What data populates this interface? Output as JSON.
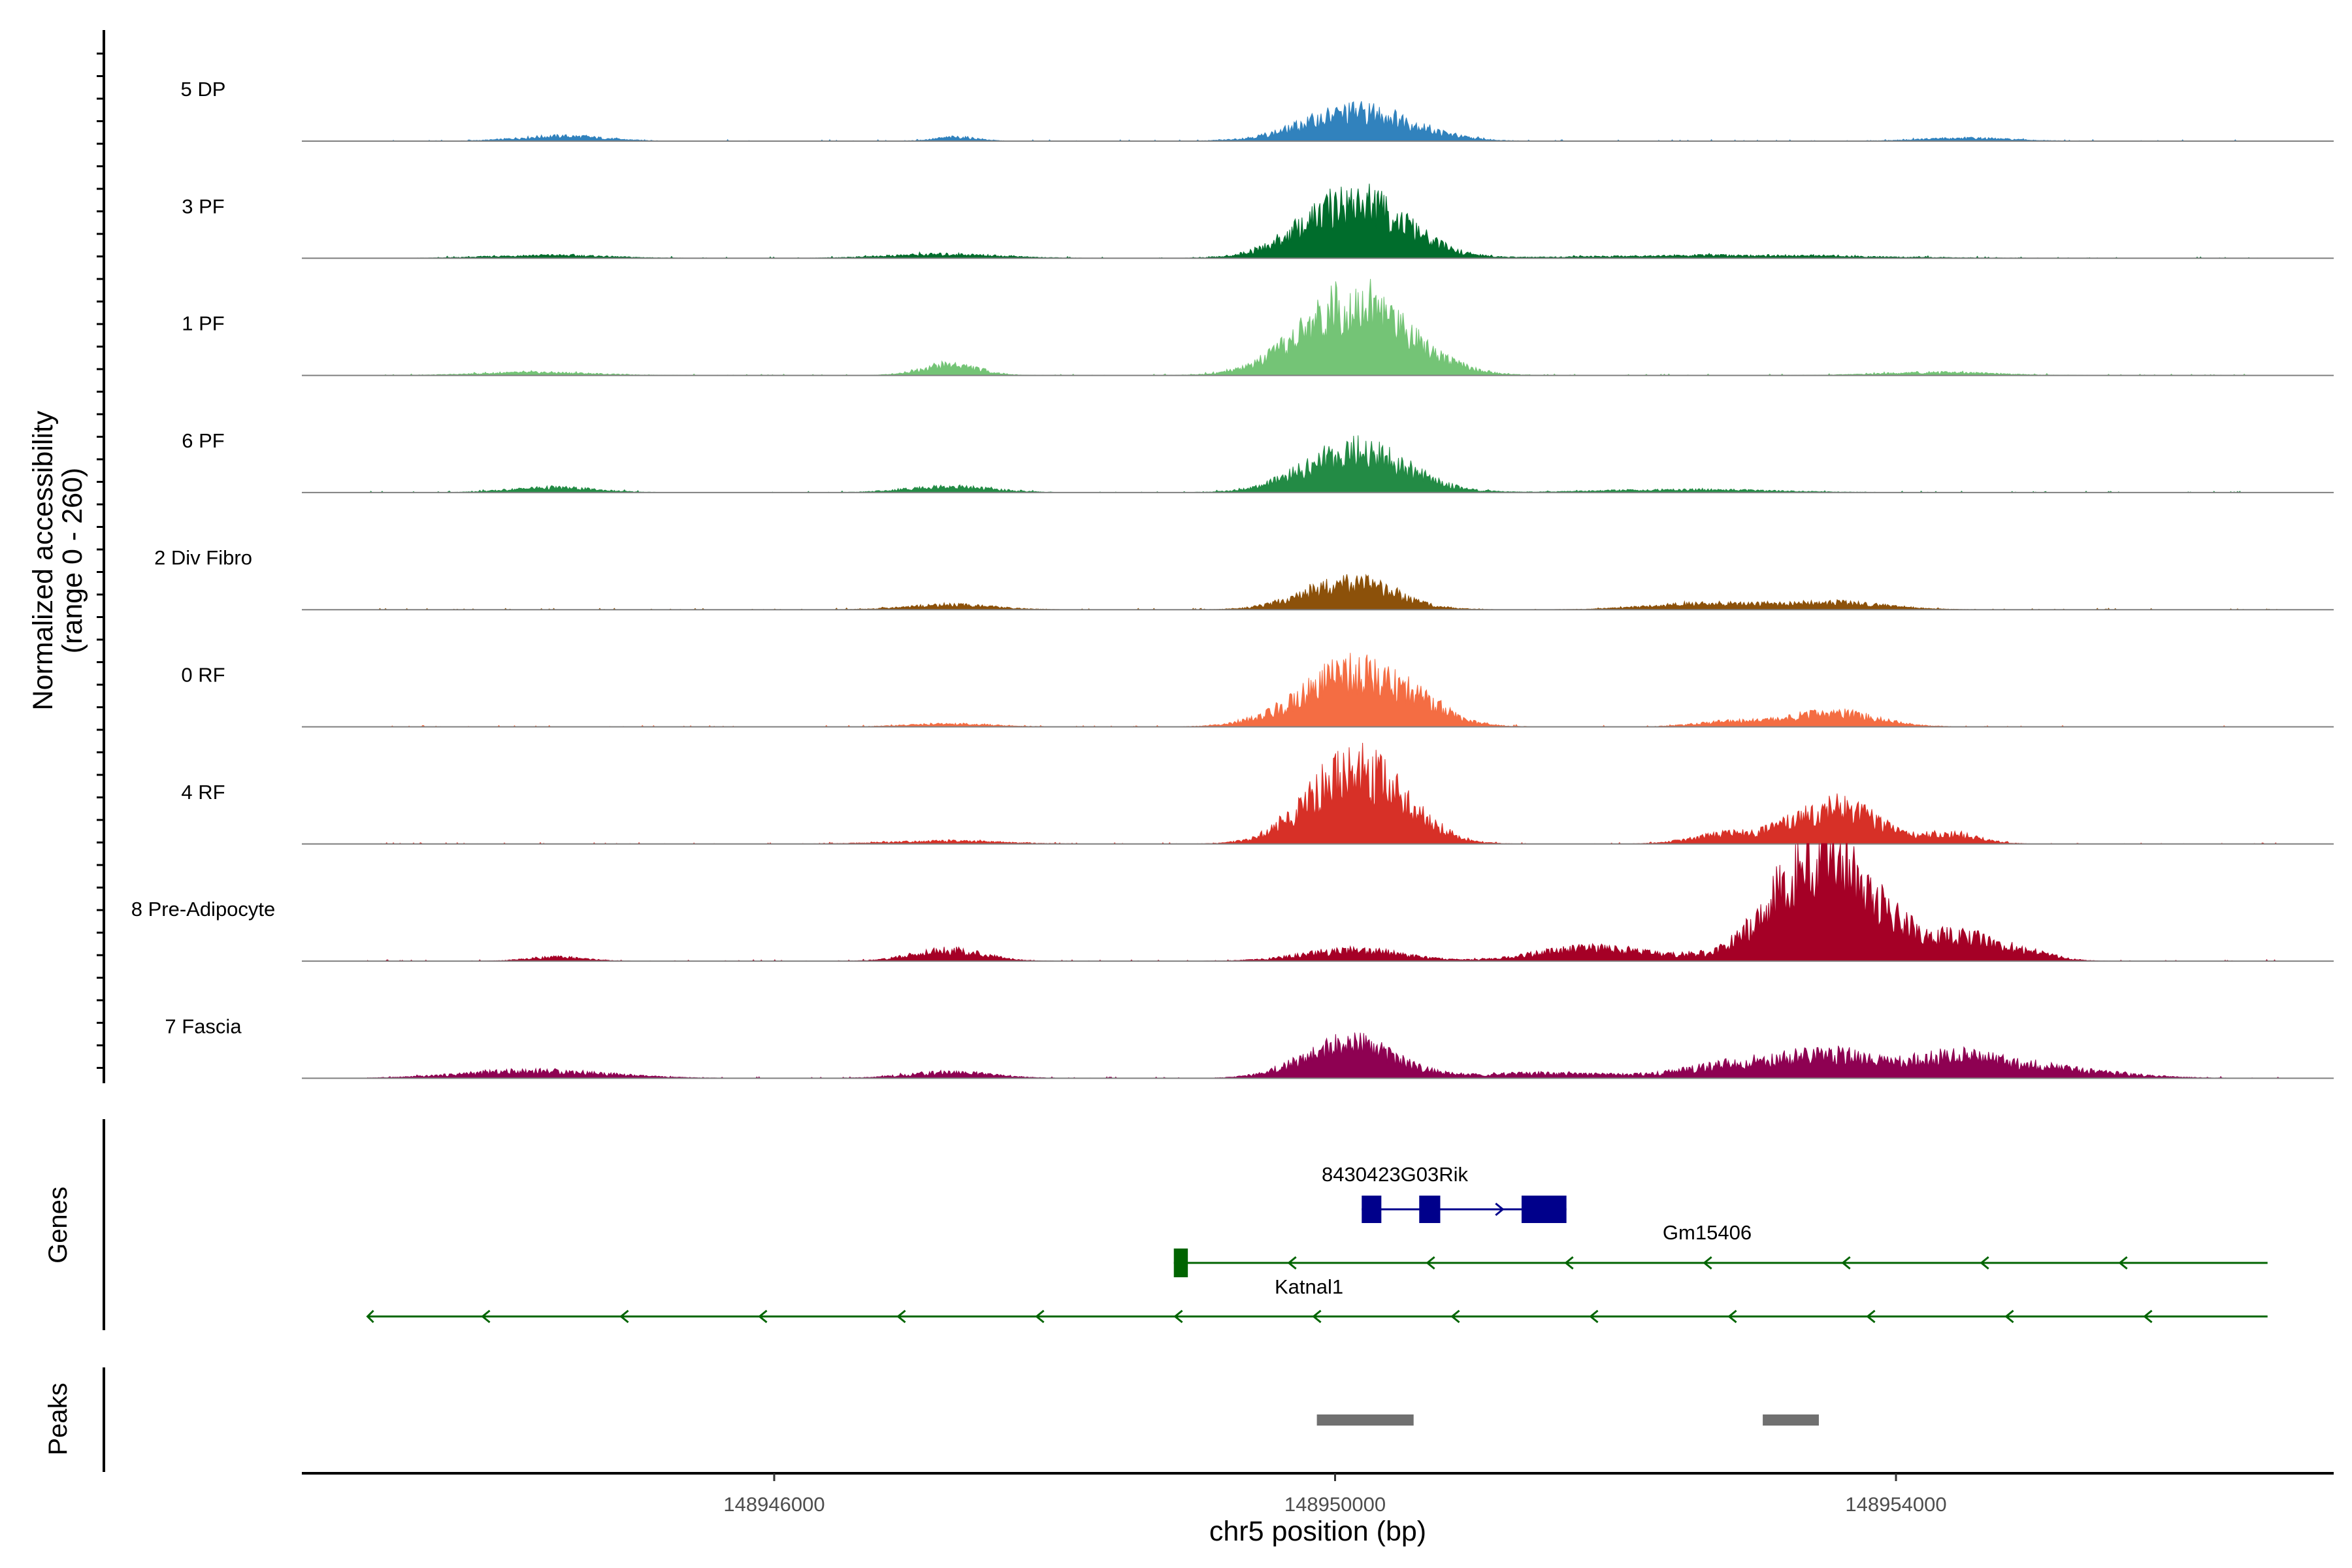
{
  "chart_data": {
    "type": "area",
    "title": "",
    "genomic_range": [
      148943100,
      148956750
    ],
    "y_axis_label_line1": "Normalized accessibility",
    "y_axis_label_line2": "(range 0 - 260)",
    "ylim": [
      0,
      260
    ],
    "tracks": [
      {
        "name": "5 DP",
        "color": "#3182BD",
        "peaks": [
          [
            148950170,
            60,
            380
          ],
          [
            148944480,
            10,
            300
          ],
          [
            148947300,
            8,
            150
          ],
          [
            148954500,
            6,
            320
          ]
        ]
      },
      {
        "name": "3 PF",
        "color": "#006D2C",
        "peaks": [
          [
            148950140,
            115,
            360
          ],
          [
            148947200,
            8,
            400
          ],
          [
            148944400,
            6,
            400
          ],
          [
            148952800,
            6,
            900
          ]
        ]
      },
      {
        "name": "1 PF",
        "color": "#74C476",
        "peaks": [
          [
            148950150,
            150,
            380
          ],
          [
            148947250,
            22,
            200
          ],
          [
            148944300,
            6,
            400
          ],
          [
            148954300,
            6,
            400
          ]
        ]
      },
      {
        "name": "6 PF",
        "color": "#238B45",
        "peaks": [
          [
            148950150,
            85,
            360
          ],
          [
            148947250,
            12,
            300
          ],
          [
            148944420,
            10,
            300
          ],
          [
            148952500,
            6,
            600
          ]
        ]
      },
      {
        "name": "2 Div Fibro",
        "color": "#8C510A",
        "peaks": [
          [
            148950100,
            55,
            320
          ],
          [
            148953580,
            14,
            350
          ],
          [
            148952650,
            12,
            400
          ],
          [
            148947250,
            10,
            300
          ]
        ]
      },
      {
        "name": "0 RF",
        "color": "#F46D43",
        "peaks": [
          [
            148950150,
            110,
            380
          ],
          [
            148953570,
            28,
            300
          ],
          [
            148950630,
            12,
            150
          ],
          [
            148952830,
            10,
            250
          ],
          [
            148947250,
            6,
            300
          ]
        ]
      },
      {
        "name": "4 RF",
        "color": "#D73027",
        "peaks": [
          [
            148950120,
            145,
            320
          ],
          [
            148953570,
            75,
            300
          ],
          [
            148950500,
            20,
            250
          ],
          [
            148952800,
            18,
            250
          ],
          [
            148954400,
            18,
            200
          ],
          [
            148947200,
            6,
            400
          ]
        ]
      },
      {
        "name": "8 Pre-Adipocyte",
        "color": "#A50026",
        "peaks": [
          [
            148953500,
            230,
            350
          ],
          [
            148954460,
            45,
            250
          ],
          [
            148947240,
            22,
            250
          ],
          [
            148952020,
            20,
            400
          ],
          [
            148950130,
            22,
            350
          ],
          [
            148954930,
            15,
            200
          ],
          [
            148944450,
            8,
            200
          ],
          [
            148951600,
            10,
            300
          ]
        ]
      },
      {
        "name": "7 Fascia",
        "color": "#8E0152",
        "peaks": [
          [
            148950100,
            70,
            320
          ],
          [
            148953560,
            45,
            350
          ],
          [
            148954440,
            35,
            300
          ],
          [
            148952840,
            25,
            350
          ],
          [
            148955000,
            20,
            500
          ],
          [
            148944300,
            15,
            500
          ],
          [
            148947250,
            12,
            300
          ],
          [
            148951500,
            10,
            500
          ]
        ]
      }
    ],
    "genes_panel_title": "Genes",
    "peaks_panel_title": "Peaks",
    "genes": [
      {
        "name": "8430423G03Rik",
        "strand": "+",
        "start": 148950190,
        "end": 148951650,
        "color": "#00008B",
        "exons": [
          [
            148950190,
            148950330
          ],
          [
            148950600,
            148950750
          ],
          [
            148951330,
            148951650
          ]
        ]
      },
      {
        "name": "Gm15406",
        "strand": "-",
        "start": 148948850,
        "end": 148956650,
        "color": "#006400",
        "exons": [
          [
            148948850,
            148948950
          ]
        ]
      },
      {
        "name": "Katnal1",
        "strand": "-",
        "start": 148943100,
        "end": 148956650,
        "color": "#006400",
        "exons": []
      }
    ],
    "peak_regions": [
      [
        148949870,
        148950560
      ],
      [
        148953050,
        148953450
      ]
    ],
    "xlabel": "chr5 position (bp)",
    "x_ticks": [
      148946000,
      148950000,
      148954000
    ],
    "x_tick_labels": [
      "148946000",
      "148950000",
      "148954000"
    ]
  }
}
